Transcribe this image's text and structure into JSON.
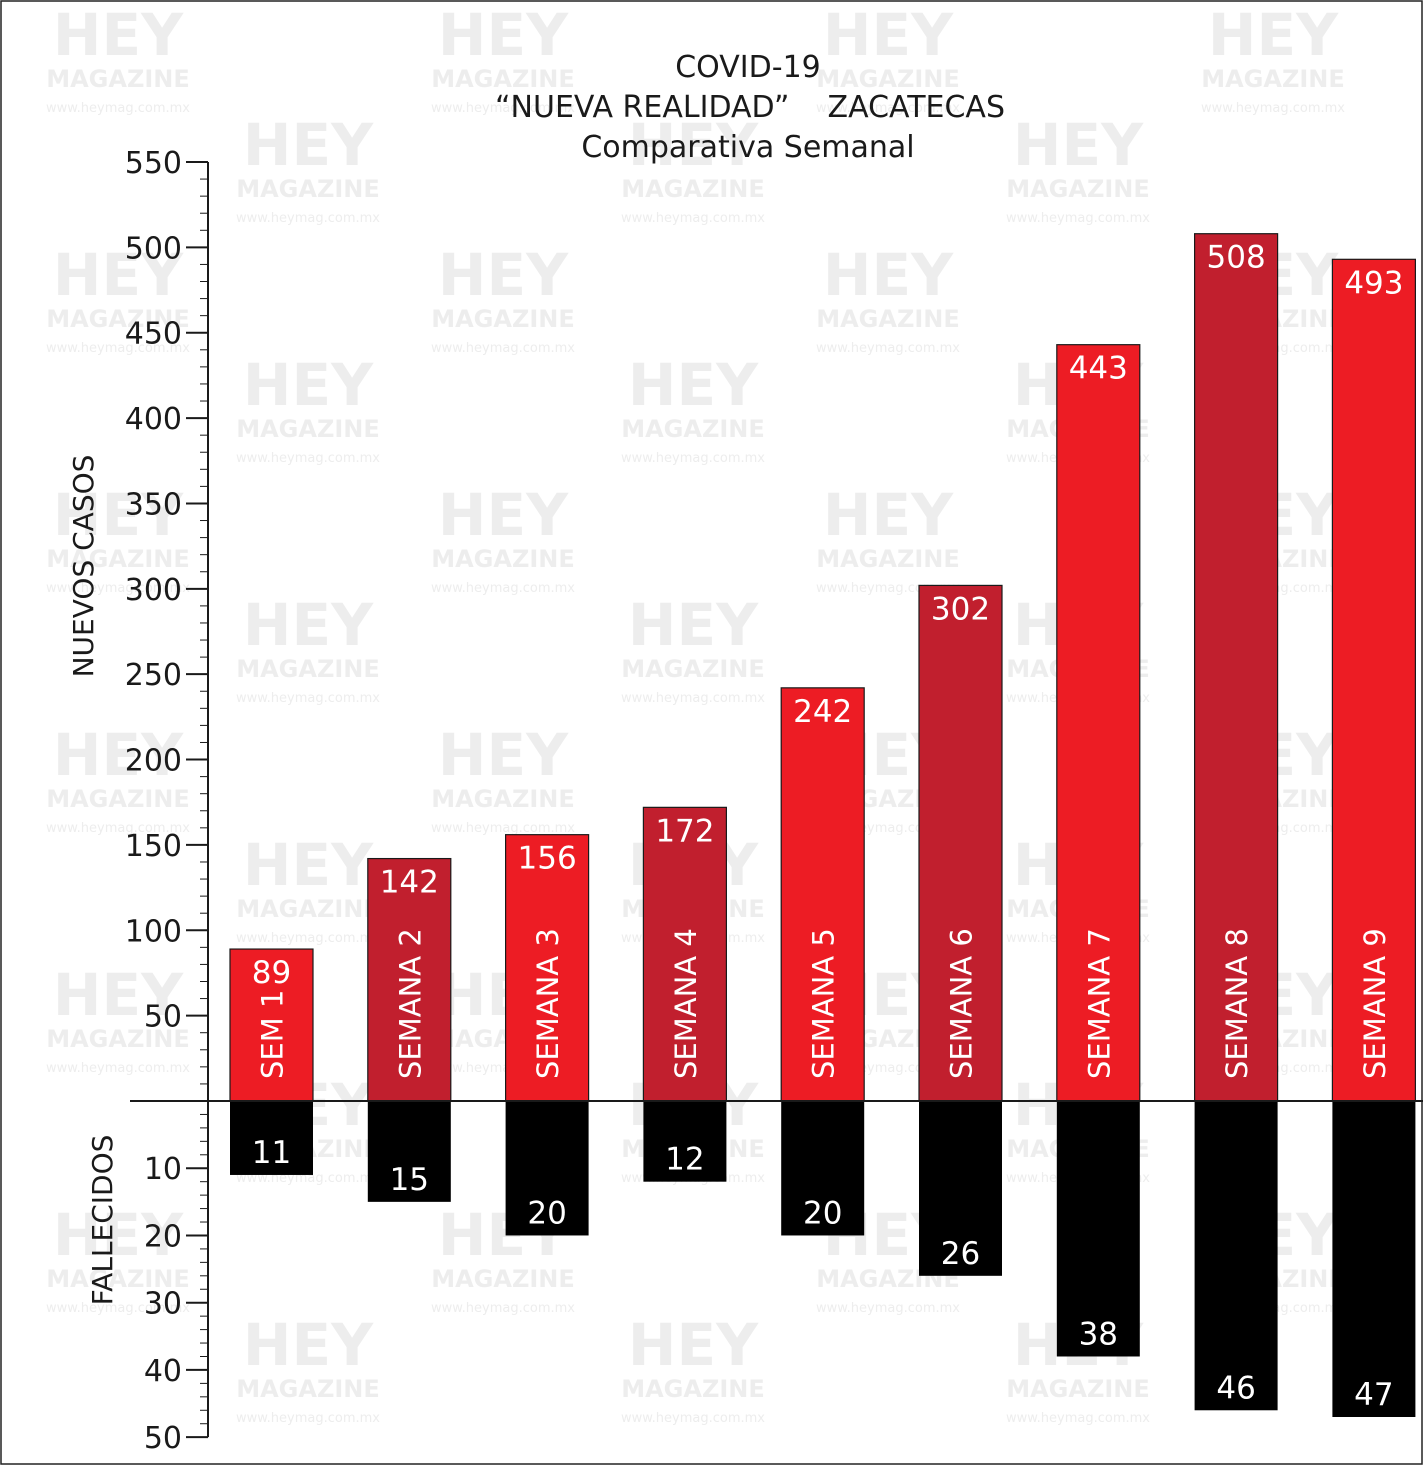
{
  "colors": {
    "bright_red": "#ed1c24",
    "dark_red": "#c11f2e",
    "deaths": "#000000",
    "axis": "#1a1a1a",
    "watermark": "#ededed"
  },
  "watermark": {
    "logo_top": "HEY",
    "logo_bottom": "MAGAZINE",
    "url": "www.heymag.com.mx"
  },
  "chart_data": {
    "type": "bar",
    "title_lines": [
      "COVID-19",
      "“NUEVA REALIDAD”    ZACATECAS",
      "Comparativa Semanal"
    ],
    "categories": [
      "SEM 1",
      "SEMANA 2",
      "SEMANA 3",
      "SEMANA 4",
      "SEMANA 5",
      "SEMANA 6",
      "SEMANA 7",
      "SEMANA 8",
      "SEMANA 9"
    ],
    "series": [
      {
        "name": "NUEVOS CASOS",
        "values": [
          89,
          142,
          156,
          172,
          242,
          302,
          443,
          508,
          493
        ],
        "colors": [
          "#ed1c24",
          "#c11f2e",
          "#ed1c24",
          "#c11f2e",
          "#ed1c24",
          "#c11f2e",
          "#ed1c24",
          "#c11f2e",
          "#ed1c24"
        ]
      },
      {
        "name": "FALLECIDOS",
        "values": [
          11,
          15,
          20,
          12,
          20,
          26,
          38,
          46,
          47
        ],
        "color": "#000000"
      }
    ],
    "y_upper": {
      "label": "NUEVOS CASOS",
      "ylim": [
        0,
        550
      ],
      "ticks": [
        50,
        100,
        150,
        200,
        250,
        300,
        350,
        400,
        450,
        500,
        550
      ],
      "minor_step": 10
    },
    "y_lower": {
      "label": "FALLECIDOS",
      "ylim": [
        0,
        50
      ],
      "ticks": [
        10,
        20,
        30,
        40,
        50
      ],
      "minor_step": 2
    },
    "grid": false,
    "legend": "none"
  }
}
